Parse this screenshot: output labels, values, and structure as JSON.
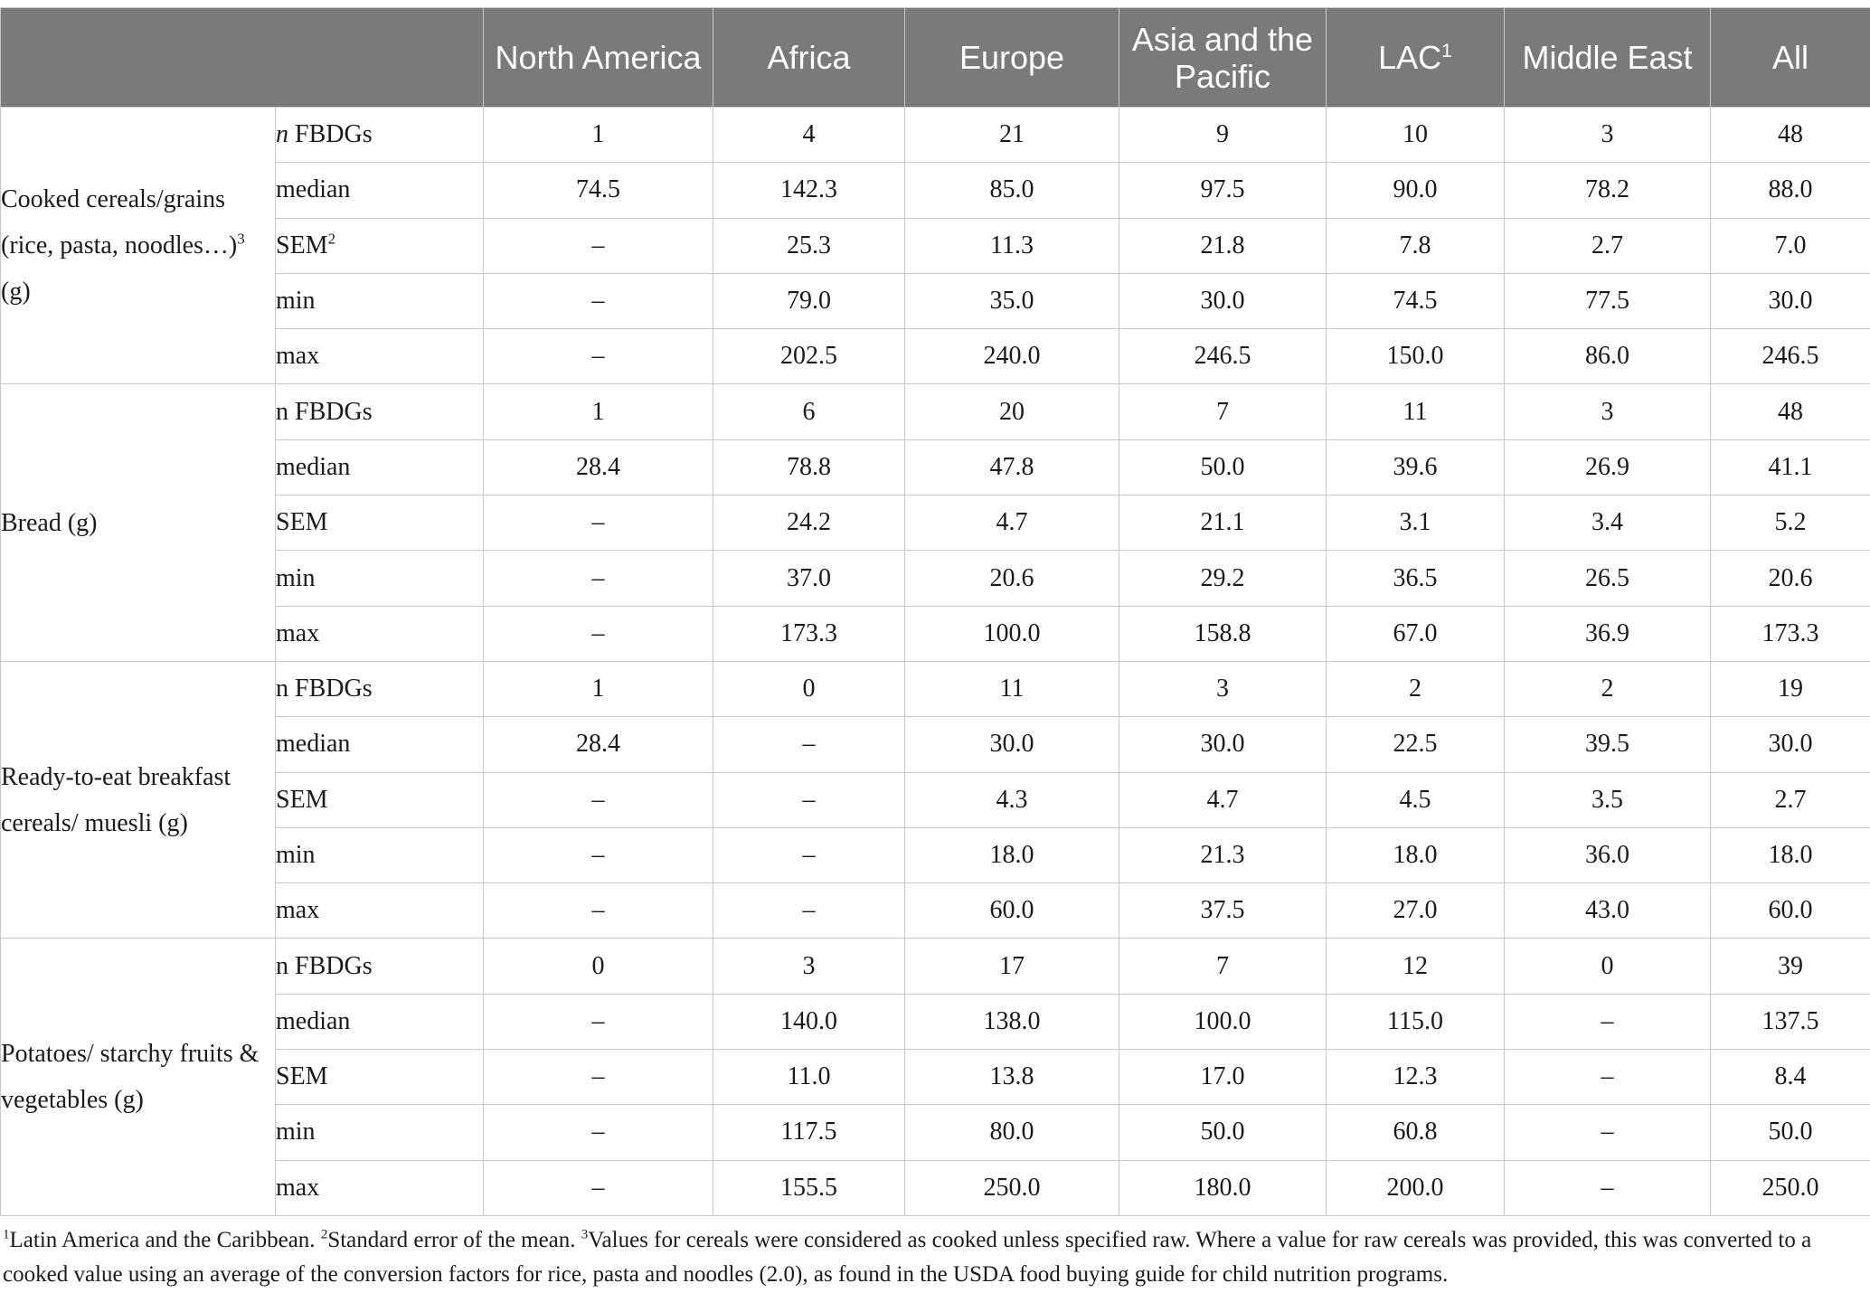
{
  "table": {
    "corner_label": "",
    "columns": [
      {
        "label": "North America",
        "sup": ""
      },
      {
        "label": "Africa",
        "sup": ""
      },
      {
        "label": "Europe",
        "sup": ""
      },
      {
        "label": "Asia and the Pacific",
        "sup": ""
      },
      {
        "label": "LAC",
        "sup": "1"
      },
      {
        "label": "Middle East",
        "sup": ""
      },
      {
        "label": "All",
        "sup": ""
      }
    ],
    "groups": [
      {
        "label": "Cooked cereals/grains (rice, pasta, noodles…)",
        "label_sup": "3",
        "label_suffix": " (g)",
        "rows": [
          {
            "stat": "FBDGs",
            "stat_prefix": "n",
            "stat_prefix_italic": true,
            "stat_sup": "",
            "values": [
              "1",
              "4",
              "21",
              "9",
              "10",
              "3",
              "48"
            ]
          },
          {
            "stat": "median",
            "stat_prefix": "",
            "stat_prefix_italic": false,
            "stat_sup": "",
            "values": [
              "74.5",
              "142.3",
              "85.0",
              "97.5",
              "90.0",
              "78.2",
              "88.0"
            ]
          },
          {
            "stat": "SEM",
            "stat_prefix": "",
            "stat_prefix_italic": false,
            "stat_sup": "2",
            "values": [
              "–",
              "25.3",
              "11.3",
              "21.8",
              "7.8",
              "2.7",
              "7.0"
            ]
          },
          {
            "stat": "min",
            "stat_prefix": "",
            "stat_prefix_italic": false,
            "stat_sup": "",
            "values": [
              "–",
              "79.0",
              "35.0",
              "30.0",
              "74.5",
              "77.5",
              "30.0"
            ]
          },
          {
            "stat": "max",
            "stat_prefix": "",
            "stat_prefix_italic": false,
            "stat_sup": "",
            "values": [
              "–",
              "202.5",
              "240.0",
              "246.5",
              "150.0",
              "86.0",
              "246.5"
            ]
          }
        ]
      },
      {
        "label": "Bread (g)",
        "label_sup": "",
        "label_suffix": "",
        "rows": [
          {
            "stat": "n FBDGs",
            "stat_prefix": "",
            "stat_prefix_italic": false,
            "stat_sup": "",
            "values": [
              "1",
              "6",
              "20",
              "7",
              "11",
              "3",
              "48"
            ]
          },
          {
            "stat": "median",
            "stat_prefix": "",
            "stat_prefix_italic": false,
            "stat_sup": "",
            "values": [
              "28.4",
              "78.8",
              "47.8",
              "50.0",
              "39.6",
              "26.9",
              "41.1"
            ]
          },
          {
            "stat": "SEM",
            "stat_prefix": "",
            "stat_prefix_italic": false,
            "stat_sup": "",
            "values": [
              "–",
              "24.2",
              "4.7",
              "21.1",
              "3.1",
              "3.4",
              "5.2"
            ]
          },
          {
            "stat": "min",
            "stat_prefix": "",
            "stat_prefix_italic": false,
            "stat_sup": "",
            "values": [
              "–",
              "37.0",
              "20.6",
              "29.2",
              "36.5",
              "26.5",
              "20.6"
            ]
          },
          {
            "stat": "max",
            "stat_prefix": "",
            "stat_prefix_italic": false,
            "stat_sup": "",
            "values": [
              "–",
              "173.3",
              "100.0",
              "158.8",
              "67.0",
              "36.9",
              "173.3"
            ]
          }
        ]
      },
      {
        "label": "Ready-to-eat breakfast cereals/ muesli (g)",
        "label_sup": "",
        "label_suffix": "",
        "rows": [
          {
            "stat": "n FBDGs",
            "stat_prefix": "",
            "stat_prefix_italic": false,
            "stat_sup": "",
            "values": [
              "1",
              "0",
              "11",
              "3",
              "2",
              "2",
              "19"
            ]
          },
          {
            "stat": "median",
            "stat_prefix": "",
            "stat_prefix_italic": false,
            "stat_sup": "",
            "values": [
              "28.4",
              "–",
              "30.0",
              "30.0",
              "22.5",
              "39.5",
              "30.0"
            ]
          },
          {
            "stat": "SEM",
            "stat_prefix": "",
            "stat_prefix_italic": false,
            "stat_sup": "",
            "values": [
              "–",
              "–",
              "4.3",
              "4.7",
              "4.5",
              "3.5",
              "2.7"
            ]
          },
          {
            "stat": "min",
            "stat_prefix": "",
            "stat_prefix_italic": false,
            "stat_sup": "",
            "values": [
              "–",
              "–",
              "18.0",
              "21.3",
              "18.0",
              "36.0",
              "18.0"
            ]
          },
          {
            "stat": "max",
            "stat_prefix": "",
            "stat_prefix_italic": false,
            "stat_sup": "",
            "values": [
              "–",
              "–",
              "60.0",
              "37.5",
              "27.0",
              "43.0",
              "60.0"
            ]
          }
        ]
      },
      {
        "label": "Potatoes/ starchy fruits & vegetables (g)",
        "label_sup": "",
        "label_suffix": "",
        "rows": [
          {
            "stat": "n FBDGs",
            "stat_prefix": "",
            "stat_prefix_italic": false,
            "stat_sup": "",
            "values": [
              "0",
              "3",
              "17",
              "7",
              "12",
              "0",
              "39"
            ]
          },
          {
            "stat": "median",
            "stat_prefix": "",
            "stat_prefix_italic": false,
            "stat_sup": "",
            "values": [
              "–",
              "140.0",
              "138.0",
              "100.0",
              "115.0",
              "–",
              "137.5"
            ]
          },
          {
            "stat": "SEM",
            "stat_prefix": "",
            "stat_prefix_italic": false,
            "stat_sup": "",
            "values": [
              "–",
              "11.0",
              "13.8",
              "17.0",
              "12.3",
              "–",
              "8.4"
            ]
          },
          {
            "stat": "min",
            "stat_prefix": "",
            "stat_prefix_italic": false,
            "stat_sup": "",
            "values": [
              "–",
              "117.5",
              "80.0",
              "50.0",
              "60.8",
              "–",
              "50.0"
            ]
          },
          {
            "stat": "max",
            "stat_prefix": "",
            "stat_prefix_italic": false,
            "stat_sup": "",
            "values": [
              "–",
              "155.5",
              "250.0",
              "180.0",
              "200.0",
              "–",
              "250.0"
            ]
          }
        ]
      }
    ]
  },
  "footnotes": [
    {
      "mark": "1",
      "text": "Latin America and the Caribbean. "
    },
    {
      "mark": "2",
      "text": "Standard error of the mean. "
    },
    {
      "mark": "3",
      "text": "Values for cereals were considered as cooked unless specified raw. Where a value for raw cereals was provided, this was converted to a cooked value using an average of the conversion factors for rice, pasta and noodles (2.0), as found in the USDA food buying guide for child nutrition programs."
    }
  ]
}
